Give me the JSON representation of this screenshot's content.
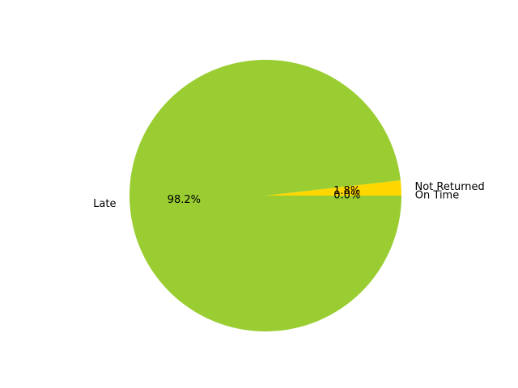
{
  "chart_data": {
    "type": "pie",
    "title": "",
    "categories": [
      "On Time",
      "Not Returned",
      "Late"
    ],
    "values": [
      0.0,
      1.8,
      98.2
    ],
    "percent_labels": [
      "0.0%",
      "1.8%",
      "98.2%"
    ],
    "colors": [
      "#8a2be2",
      "#ffd700",
      "#9acd32"
    ],
    "start_angle_deg": 0,
    "direction": "counterclockwise",
    "legend": "none"
  }
}
